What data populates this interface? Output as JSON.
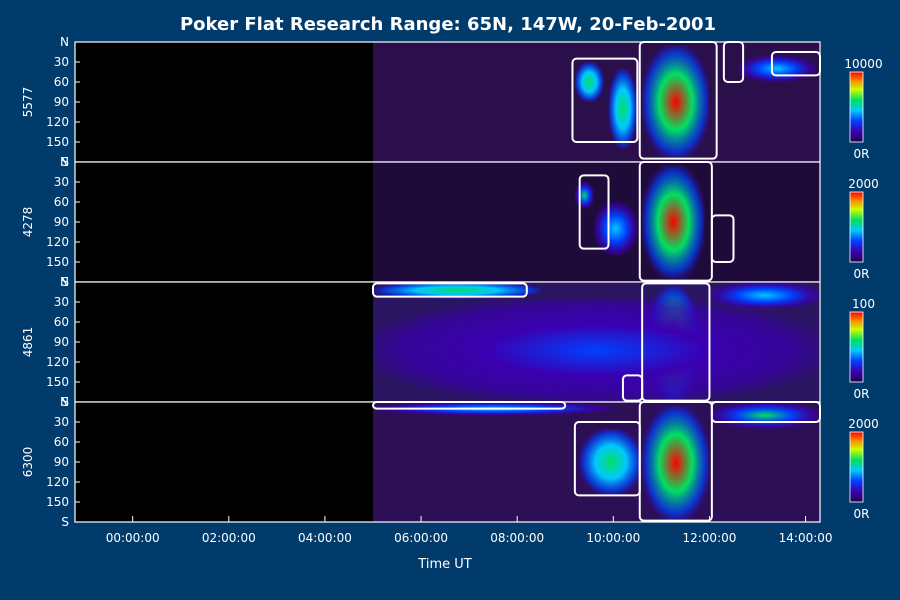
{
  "chart_data": {
    "type": "heatmap",
    "title": "Poker Flat Research Range: 65N, 147W, 20-Feb-2001",
    "xlabel": "Time UT",
    "x_tick_labels": [
      "00:00:00",
      "02:00:00",
      "04:00:00",
      "06:00:00",
      "08:00:00",
      "10:00:00",
      "12:00:00",
      "14:00:00"
    ],
    "x_range_hours": [
      -1.2,
      14.3
    ],
    "y_axis": {
      "range_deg": [
        0,
        180
      ],
      "tick_labels": [
        "N",
        "30",
        "60",
        "90",
        "120",
        "150",
        "S"
      ]
    },
    "data_start_hour": 5.0,
    "panels": [
      {
        "name": "5577",
        "scale_max": "10000",
        "scale_min": "0R",
        "background": "#2a0f4a",
        "blobs": [
          {
            "t0": 10.6,
            "t1": 12.0,
            "lat0": 5,
            "lat1": 175,
            "max": 0.95
          },
          {
            "t0": 9.9,
            "t1": 10.5,
            "lat0": 40,
            "lat1": 160,
            "max": 0.6
          },
          {
            "t0": 9.2,
            "t1": 9.8,
            "lat0": 30,
            "lat1": 90,
            "max": 0.55
          },
          {
            "t0": 12.6,
            "t1": 14.2,
            "lat0": 20,
            "lat1": 60,
            "max": 0.35
          }
        ],
        "contours": [
          {
            "t0": 10.55,
            "t1": 12.15,
            "lat0": 0,
            "lat1": 175
          },
          {
            "t0": 9.15,
            "t1": 10.5,
            "lat0": 25,
            "lat1": 150
          },
          {
            "t0": 12.3,
            "t1": 12.7,
            "lat0": 0,
            "lat1": 60
          },
          {
            "t0": 13.3,
            "t1": 14.3,
            "lat0": 15,
            "lat1": 50
          }
        ]
      },
      {
        "name": "4278",
        "scale_max": "2000",
        "scale_min": "0R",
        "background": "#1f0b3a",
        "blobs": [
          {
            "t0": 10.6,
            "t1": 11.9,
            "lat0": 5,
            "lat1": 175,
            "max": 0.9
          },
          {
            "t0": 9.2,
            "t1": 9.6,
            "lat0": 30,
            "lat1": 70,
            "max": 0.5
          },
          {
            "t0": 9.6,
            "t1": 10.5,
            "lat0": 60,
            "lat1": 140,
            "max": 0.35
          }
        ],
        "contours": [
          {
            "t0": 10.55,
            "t1": 12.05,
            "lat0": 0,
            "lat1": 178
          },
          {
            "t0": 9.3,
            "t1": 9.9,
            "lat0": 20,
            "lat1": 130
          },
          {
            "t0": 12.05,
            "t1": 12.5,
            "lat0": 80,
            "lat1": 150
          }
        ]
      },
      {
        "name": "4861",
        "scale_max": "100",
        "scale_min": "0R",
        "background": "#2a1560",
        "blobs": [
          {
            "t0": 10.7,
            "t1": 11.8,
            "lat0": 5,
            "lat1": 178,
            "max": 0.95
          },
          {
            "t0": 5.0,
            "t1": 8.5,
            "lat0": 0,
            "lat1": 25,
            "max": 0.55
          },
          {
            "t0": 5.0,
            "t1": 14.3,
            "lat0": 25,
            "lat1": 180,
            "max": 0.22
          },
          {
            "t0": 12.0,
            "t1": 14.3,
            "lat0": 0,
            "lat1": 40,
            "max": 0.4
          }
        ],
        "contours": [
          {
            "t0": 10.6,
            "t1": 12.0,
            "lat0": 2,
            "lat1": 178
          },
          {
            "t0": 5.0,
            "t1": 8.2,
            "lat0": 2,
            "lat1": 22
          },
          {
            "t0": 10.2,
            "t1": 10.6,
            "lat0": 140,
            "lat1": 178
          }
        ]
      },
      {
        "name": "6300",
        "scale_max": "2000",
        "scale_min": "0R",
        "background": "#2d0f55",
        "blobs": [
          {
            "t0": 10.6,
            "t1": 12.0,
            "lat0": 5,
            "lat1": 178,
            "max": 0.95
          },
          {
            "t0": 9.3,
            "t1": 10.6,
            "lat0": 40,
            "lat1": 140,
            "max": 0.6
          },
          {
            "t0": 5.0,
            "t1": 10.0,
            "lat0": 0,
            "lat1": 20,
            "max": 0.45
          },
          {
            "t0": 12.0,
            "t1": 14.3,
            "lat0": 0,
            "lat1": 40,
            "max": 0.5
          }
        ],
        "contours": [
          {
            "t0": 10.55,
            "t1": 12.05,
            "lat0": 0,
            "lat1": 178
          },
          {
            "t0": 9.2,
            "t1": 10.55,
            "lat0": 30,
            "lat1": 140
          },
          {
            "t0": 5.0,
            "t1": 9.0,
            "lat0": 0,
            "lat1": 10
          },
          {
            "t0": 12.05,
            "t1": 14.3,
            "lat0": 0,
            "lat1": 30
          }
        ]
      }
    ]
  }
}
